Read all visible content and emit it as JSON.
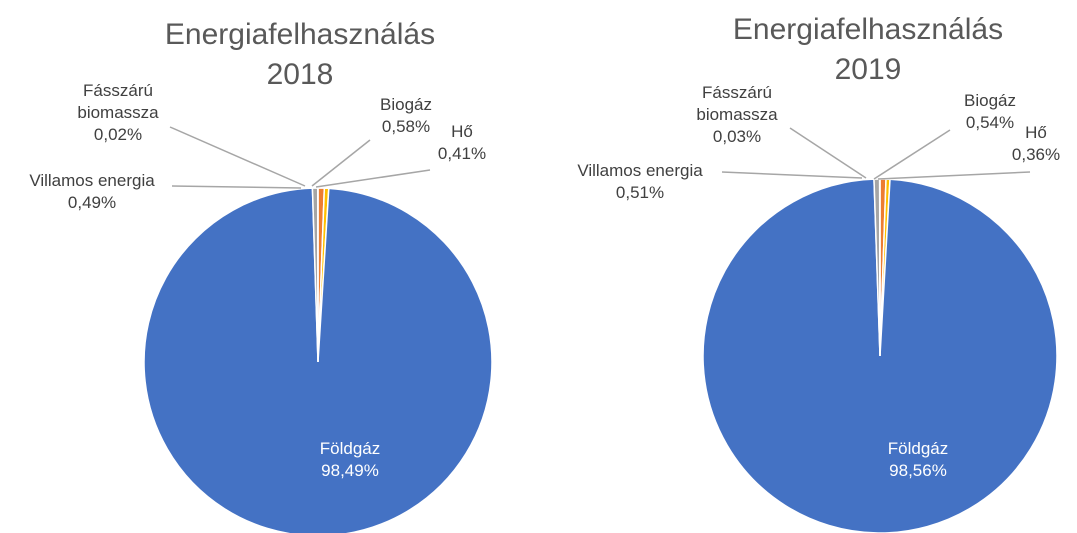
{
  "chart_data": [
    {
      "type": "pie",
      "title": "Energiafelhasználás 2018",
      "categories": [
        "Biogáz",
        "Hő",
        "Földgáz",
        "Villamos energia",
        "Fásszárú biomassza"
      ],
      "values": [
        0.58,
        0.41,
        98.49,
        0.49,
        0.02
      ],
      "value_labels": [
        "0,58%",
        "0,41%",
        "98,49%",
        "0,49%",
        "0,02%"
      ],
      "colors": [
        "#ED7D31",
        "#FFC000",
        "#4472C4",
        "#A5A5A5",
        "#5B9BD5"
      ]
    },
    {
      "type": "pie",
      "title": "Energiafelhasználás 2019",
      "categories": [
        "Biogáz",
        "Hő",
        "Földgáz",
        "Villamos energia",
        "Fásszárú biomassza"
      ],
      "values": [
        0.54,
        0.36,
        98.56,
        0.51,
        0.03
      ],
      "value_labels": [
        "0,54%",
        "0,36%",
        "98,56%",
        "0,51%",
        "0,03%"
      ],
      "colors": [
        "#ED7D31",
        "#FFC000",
        "#4472C4",
        "#A5A5A5",
        "#5B9BD5"
      ]
    }
  ]
}
